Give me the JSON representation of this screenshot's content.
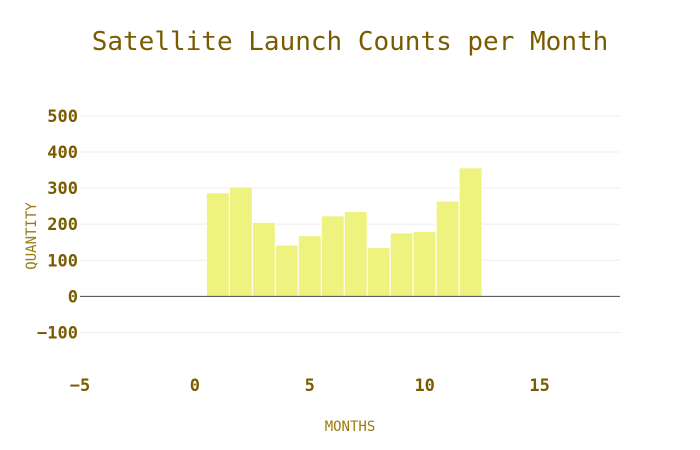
{
  "chart_data": {
    "type": "bar",
    "title": "Satellite Launch Counts per Month",
    "xlabel": "MONTHS",
    "ylabel": "QUANTITY",
    "x": [
      1,
      2,
      3,
      4,
      5,
      6,
      7,
      8,
      9,
      10,
      11,
      12
    ],
    "values": [
      287,
      303,
      205,
      142,
      168,
      223,
      235,
      135,
      176,
      180,
      264,
      356
    ],
    "xlim": [
      -5,
      18.5
    ],
    "ylim": [
      -190,
      530
    ],
    "xticks": [
      -5,
      0,
      5,
      10,
      15
    ],
    "yticks": [
      -100,
      0,
      100,
      200,
      300,
      400,
      500
    ],
    "bar_color": "#eef27e",
    "grid": true,
    "legend": "none"
  }
}
